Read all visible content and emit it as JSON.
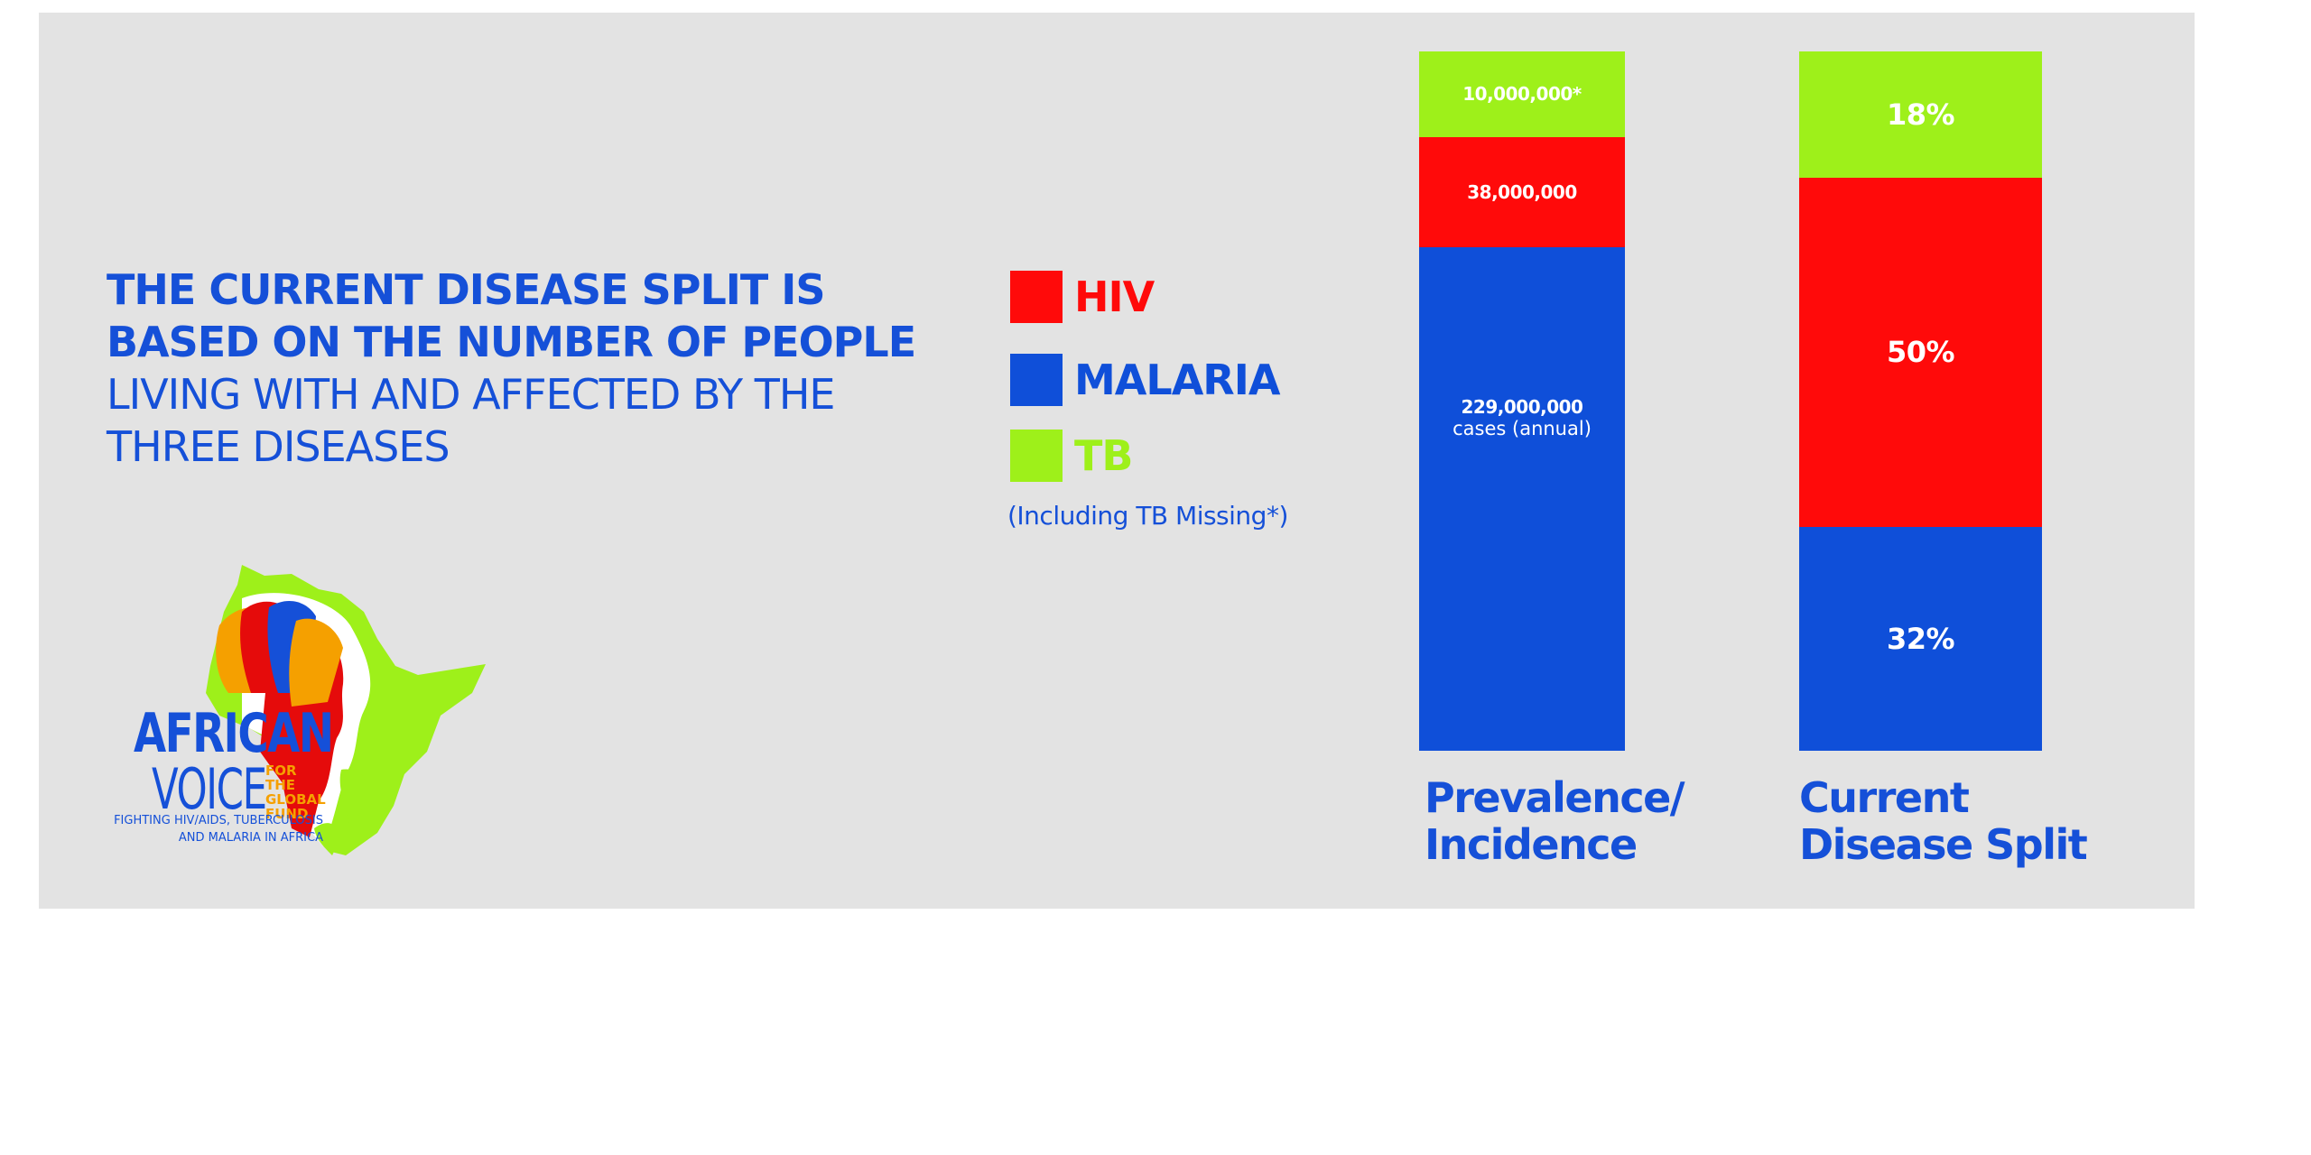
{
  "headline": {
    "bold": "THE CURRENT DISEASE SPLIT IS BASED ON THE NUMBER OF PEOPLE",
    "light": "LIVING WITH AND AFFECTED BY THE THREE DISEASES"
  },
  "legend": {
    "items": [
      {
        "label": "HIV",
        "color": "#ff0a0a"
      },
      {
        "label": "MALARIA",
        "color": "#0f4fd9"
      },
      {
        "label": "TB",
        "color": "#9ef01a"
      }
    ],
    "note": "(Including TB Missing*)"
  },
  "logo": {
    "line1": "AFRICAN",
    "line2": "VOICE",
    "sub": "FOR THE GLOBAL FUND",
    "tagline": "FIGHTING HIV/AIDS, TUBERCULOSIS AND MALARIA IN AFRICA"
  },
  "chart_data": [
    {
      "type": "bar",
      "stacked": true,
      "title": "Prevalence/ Incidence",
      "series": [
        {
          "name": "TB",
          "value": 10000000,
          "label": "10,000,000*",
          "color": "#9ef01a"
        },
        {
          "name": "HIV",
          "value": 38000000,
          "label": "38,000,000",
          "color": "#ff0a0a"
        },
        {
          "name": "MALARIA",
          "value": 229000000,
          "label": "229,000,000",
          "sublabel": "cases (annual)",
          "color": "#0f4fd9"
        }
      ]
    },
    {
      "type": "bar",
      "stacked": true,
      "title": "Current Disease Split",
      "series": [
        {
          "name": "TB",
          "value": 18,
          "label": "18%",
          "color": "#9ef01a"
        },
        {
          "name": "HIV",
          "value": 50,
          "label": "50%",
          "color": "#ff0a0a"
        },
        {
          "name": "MALARIA",
          "value": 32,
          "label": "32%",
          "color": "#0f4fd9"
        }
      ]
    }
  ]
}
